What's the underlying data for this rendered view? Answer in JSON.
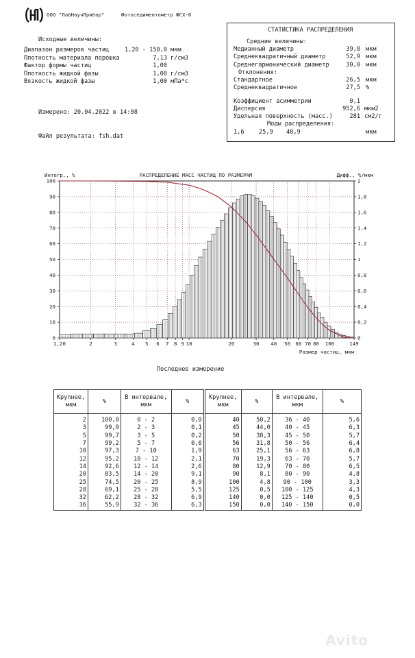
{
  "header": {
    "company": "ООО \"ЛабНаучПрибор\"",
    "device": "Фотоседиментометр ФСХ-6"
  },
  "inputs": {
    "title": "Исходные величины:",
    "rows": [
      {
        "label": "Диапазон размеров частиц",
        "value": "1,20 - 150,0",
        "unit": "мкм"
      },
      {
        "label": "Плотность материала порошка",
        "value": "7,13",
        "unit": "г/см3"
      },
      {
        "label": "Фактор формы частиц",
        "value": "1,00",
        "unit": ""
      },
      {
        "label": "Плотность жидкой фазы",
        "value": "1,00",
        "unit": "г/см3"
      },
      {
        "label": "Вязкость жидкой фазы",
        "value": "1,00",
        "unit": "мПа*с"
      }
    ]
  },
  "measured": "Измерено: 20.04.2022 в 14:08",
  "result_file": "Файл результата: fsh.dat",
  "stats": {
    "title": "СТАТИСТИКА РАСПРЕДЕЛЕНИЯ",
    "means_title": "Средние величины:",
    "means": [
      {
        "label": "Медианный диаметр",
        "value": "39,8",
        "unit": "мкм"
      },
      {
        "label": "Среднеквадратичный диаметр",
        "value": "52,9",
        "unit": "мкм"
      },
      {
        "label": "Среднегармонический диаметр",
        "value": "30,0",
        "unit": "мкм"
      }
    ],
    "dev_title": "Отклонения:",
    "devs": [
      {
        "label": "Стандартное",
        "value": "26,5",
        "unit": "мкм"
      },
      {
        "label": "Среднеквадратичное",
        "value": "27,5",
        "unit": "%"
      }
    ],
    "extra": [
      {
        "label": "Коэффициент асимметрии",
        "value": "0,1",
        "unit": ""
      },
      {
        "label": "Дисперсия",
        "value": "952,6",
        "unit": "мкм2"
      },
      {
        "label": "Удельная поверхность (масс.)",
        "value": "281",
        "unit": "см2/г"
      }
    ],
    "modes_title": "Моды распределения:",
    "modes": [
      "1,6",
      "25,9",
      "48,9"
    ],
    "modes_unit": "мкм"
  },
  "chart_data": {
    "type": "bar",
    "title": "РАСПРЕДЕЛЕНИЕ МАСС ЧАСТИЦ ПО РАЗМЕРАМ",
    "ylabel_left": "Интегр., %",
    "ylabel_right": "Дифф., %/мкм",
    "xlabel": "Размер частиц, мкм",
    "xscale": "log",
    "xlim": [
      1.2,
      149
    ],
    "ylim_left": [
      0,
      100
    ],
    "ylim_right": [
      0,
      2
    ],
    "left_ticks": [
      "0",
      "10",
      "20",
      "30",
      "40",
      "50",
      "60",
      "70",
      "80",
      "90",
      "100"
    ],
    "right_ticks": [
      "0",
      "0,2",
      "0,4",
      "0,6",
      "0,8",
      "1",
      "1,2",
      "1,4",
      "1,6",
      "1,8",
      "2"
    ],
    "x_ticks": [
      {
        "v": 1.2,
        "label": "1,20"
      },
      {
        "v": 2,
        "label": "2"
      },
      {
        "v": 3,
        "label": "3"
      },
      {
        "v": 4,
        "label": "4"
      },
      {
        "v": 5,
        "label": "5"
      },
      {
        "v": 6,
        "label": "6"
      },
      {
        "v": 7,
        "label": "7"
      },
      {
        "v": 8,
        "label": "8"
      },
      {
        "v": 9,
        "label": "9"
      },
      {
        "v": 10,
        "label": "10"
      },
      {
        "v": 20,
        "label": "20"
      },
      {
        "v": 30,
        "label": "30"
      },
      {
        "v": 40,
        "label": "40"
      },
      {
        "v": 50,
        "label": "50"
      },
      {
        "v": 60,
        "label": "60"
      },
      {
        "v": 70,
        "label": "70"
      },
      {
        "v": 80,
        "label": "80"
      },
      {
        "v": 100,
        "label": "100"
      },
      {
        "v": 149,
        "label": "149"
      }
    ],
    "differential": {
      "name": "Дифф., %/мкм",
      "x": [
        1.3,
        1.6,
        1.9,
        2.3,
        2.7,
        3.2,
        3.8,
        4.4,
        5.0,
        5.6,
        6.2,
        6.8,
        7.4,
        8.0,
        8.6,
        9.2,
        9.8,
        10.5,
        11.3,
        12.1,
        13.0,
        14.0,
        15.0,
        16.1,
        17.2,
        18.4,
        19.7,
        21.0,
        22.4,
        23.8,
        25.3,
        26.9,
        28.6,
        30.4,
        32.3,
        34.3,
        36.4,
        38.6,
        40.9,
        43.3,
        45.8,
        48.4,
        51.1,
        53.9,
        56.8,
        59.8,
        62.9,
        66.1,
        69.4,
        72.8,
        76.3,
        80.0,
        84.0,
        88.5,
        93.5,
        99.0,
        105.0,
        111.5,
        118.5,
        126.0,
        134.0,
        142.0
      ],
      "y": [
        0.04,
        0.05,
        0.05,
        0.05,
        0.05,
        0.05,
        0.05,
        0.06,
        0.09,
        0.12,
        0.17,
        0.23,
        0.31,
        0.4,
        0.49,
        0.58,
        0.68,
        0.8,
        0.92,
        1.03,
        1.13,
        1.23,
        1.32,
        1.41,
        1.5,
        1.58,
        1.66,
        1.72,
        1.77,
        1.81,
        1.83,
        1.83,
        1.81,
        1.78,
        1.74,
        1.69,
        1.62,
        1.55,
        1.47,
        1.39,
        1.31,
        1.22,
        1.13,
        1.04,
        0.95,
        0.86,
        0.77,
        0.69,
        0.61,
        0.53,
        0.46,
        0.39,
        0.32,
        0.26,
        0.2,
        0.15,
        0.11,
        0.07,
        0.05,
        0.03,
        0.02,
        0.01
      ]
    },
    "integral": {
      "name": "Интегр., %",
      "x": [
        1.2,
        2,
        3,
        5,
        7,
        10,
        12,
        14,
        16,
        20,
        25,
        28,
        32,
        36,
        40,
        45,
        50,
        56,
        63,
        70,
        80,
        90,
        100,
        125,
        149
      ],
      "y": [
        100.0,
        100.0,
        99.9,
        99.7,
        99.2,
        97.3,
        95.2,
        92.6,
        90.0,
        83.5,
        74.5,
        69.1,
        62.2,
        55.9,
        50.2,
        44.0,
        38.3,
        31.8,
        25.1,
        19.3,
        12.9,
        8.1,
        4.8,
        0.5,
        0.0
      ]
    },
    "colors": {
      "bars": "#333333",
      "curve": "#9b2a36",
      "grid": "#a24050"
    }
  },
  "last_measurement": "Последнее измерение",
  "table": {
    "headers": [
      "Крупнее,\nмкм",
      "%",
      "В интервале,\nмкм",
      "%",
      "Крупнее,\nмкм",
      "%",
      "В интервале,\nмкм",
      "%"
    ],
    "rows": [
      [
        "2",
        "100,0",
        "0 - 2",
        "0,0",
        "40",
        "50,2",
        "36 - 40",
        "5,6"
      ],
      [
        "3",
        "99,9",
        "2 - 3",
        "0,1",
        "45",
        "44,0",
        "40 - 45",
        "6,3"
      ],
      [
        "5",
        "99,7",
        "3 - 5",
        "0,2",
        "50",
        "38,3",
        "45 - 50",
        "5,7"
      ],
      [
        "7",
        "99,2",
        "5 - 7",
        "0,6",
        "56",
        "31,8",
        "50 - 56",
        "6,4"
      ],
      [
        "10",
        "97,3",
        "7 - 10",
        "1,9",
        "63",
        "25,1",
        "56 - 63",
        "6,8"
      ],
      [
        "12",
        "95,2",
        "10 - 12",
        "2,1",
        "70",
        "19,3",
        "63 - 70",
        "5,7"
      ],
      [
        "14",
        "92,6",
        "12 - 14",
        "2,6",
        "80",
        "12,9",
        "70 - 80",
        "6,5"
      ],
      [
        "20",
        "83,5",
        "14 - 20",
        "9,1",
        "90",
        "8,1",
        "80 - 90",
        "4,8"
      ],
      [
        "25",
        "74,5",
        "20 - 25",
        "8,9",
        "100",
        "4,8",
        "90 - 100",
        "3,3"
      ],
      [
        "28",
        "69,1",
        "25 - 28",
        "5,5",
        "125",
        "0,5",
        "100 - 125",
        "4,3"
      ],
      [
        "32",
        "62,2",
        "28 - 32",
        "6,9",
        "140",
        "0,0",
        "125 - 140",
        "0,5"
      ],
      [
        "36",
        "55,9",
        "32 - 36",
        "6,3",
        "150",
        "0,0",
        "140 - 150",
        "0,0"
      ]
    ]
  },
  "watermark": "Avito"
}
